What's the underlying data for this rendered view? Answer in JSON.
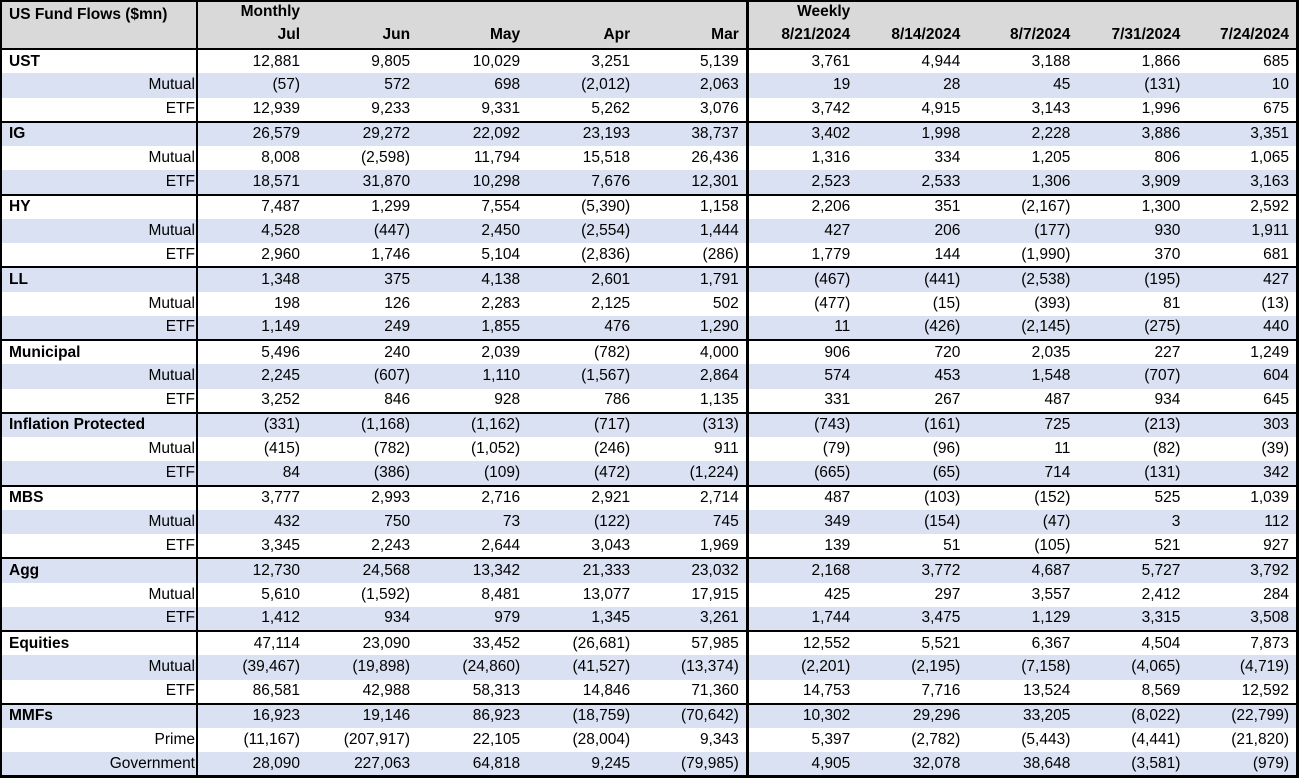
{
  "colors": {
    "header_bg": "#D9D9D9",
    "row_shade": "#D9E1F2",
    "row_plain": "#FFFFFF",
    "border": "#000000",
    "text": "#000000"
  },
  "chart_data": {
    "type": "table",
    "title": "US Fund Flows ($mn)",
    "group_headers": {
      "monthly": "Monthly",
      "weekly": "Weekly"
    },
    "columns": {
      "monthly": [
        "Jul",
        "Jun",
        "May",
        "Apr",
        "Mar"
      ],
      "weekly": [
        "8/21/2024",
        "8/14/2024",
        "8/7/2024",
        "7/31/2024",
        "7/24/2024"
      ]
    },
    "negative_format": "parentheses",
    "rows": [
      {
        "label": "UST",
        "type": "category",
        "monthly": [
          "12,881",
          "9,805",
          "10,029",
          "3,251",
          "5,139"
        ],
        "weekly": [
          "3,761",
          "4,944",
          "3,188",
          "1,866",
          "685"
        ]
      },
      {
        "label": "Mutual",
        "type": "sub",
        "monthly": [
          "(57)",
          "572",
          "698",
          "(2,012)",
          "2,063"
        ],
        "weekly": [
          "19",
          "28",
          "45",
          "(131)",
          "10"
        ]
      },
      {
        "label": "ETF",
        "type": "sub",
        "monthly": [
          "12,939",
          "9,233",
          "9,331",
          "5,262",
          "3,076"
        ],
        "weekly": [
          "3,742",
          "4,915",
          "3,143",
          "1,996",
          "675"
        ]
      },
      {
        "label": "IG",
        "type": "category",
        "monthly": [
          "26,579",
          "29,272",
          "22,092",
          "23,193",
          "38,737"
        ],
        "weekly": [
          "3,402",
          "1,998",
          "2,228",
          "3,886",
          "3,351"
        ]
      },
      {
        "label": "Mutual",
        "type": "sub",
        "monthly": [
          "8,008",
          "(2,598)",
          "11,794",
          "15,518",
          "26,436"
        ],
        "weekly": [
          "1,316",
          "334",
          "1,205",
          "806",
          "1,065"
        ]
      },
      {
        "label": "ETF",
        "type": "sub",
        "monthly": [
          "18,571",
          "31,870",
          "10,298",
          "7,676",
          "12,301"
        ],
        "weekly": [
          "2,523",
          "2,533",
          "1,306",
          "3,909",
          "3,163"
        ]
      },
      {
        "label": "HY",
        "type": "category",
        "monthly": [
          "7,487",
          "1,299",
          "7,554",
          "(5,390)",
          "1,158"
        ],
        "weekly": [
          "2,206",
          "351",
          "(2,167)",
          "1,300",
          "2,592"
        ]
      },
      {
        "label": "Mutual",
        "type": "sub",
        "monthly": [
          "4,528",
          "(447)",
          "2,450",
          "(2,554)",
          "1,444"
        ],
        "weekly": [
          "427",
          "206",
          "(177)",
          "930",
          "1,911"
        ]
      },
      {
        "label": "ETF",
        "type": "sub",
        "monthly": [
          "2,960",
          "1,746",
          "5,104",
          "(2,836)",
          "(286)"
        ],
        "weekly": [
          "1,779",
          "144",
          "(1,990)",
          "370",
          "681"
        ]
      },
      {
        "label": "LL",
        "type": "category",
        "monthly": [
          "1,348",
          "375",
          "4,138",
          "2,601",
          "1,791"
        ],
        "weekly": [
          "(467)",
          "(441)",
          "(2,538)",
          "(195)",
          "427"
        ]
      },
      {
        "label": "Mutual",
        "type": "sub",
        "monthly": [
          "198",
          "126",
          "2,283",
          "2,125",
          "502"
        ],
        "weekly": [
          "(477)",
          "(15)",
          "(393)",
          "81",
          "(13)"
        ]
      },
      {
        "label": "ETF",
        "type": "sub",
        "monthly": [
          "1,149",
          "249",
          "1,855",
          "476",
          "1,290"
        ],
        "weekly": [
          "11",
          "(426)",
          "(2,145)",
          "(275)",
          "440"
        ]
      },
      {
        "label": "Municipal",
        "type": "category",
        "monthly": [
          "5,496",
          "240",
          "2,039",
          "(782)",
          "4,000"
        ],
        "weekly": [
          "906",
          "720",
          "2,035",
          "227",
          "1,249"
        ]
      },
      {
        "label": "Mutual",
        "type": "sub",
        "monthly": [
          "2,245",
          "(607)",
          "1,110",
          "(1,567)",
          "2,864"
        ],
        "weekly": [
          "574",
          "453",
          "1,548",
          "(707)",
          "604"
        ]
      },
      {
        "label": "ETF",
        "type": "sub",
        "monthly": [
          "3,252",
          "846",
          "928",
          "786",
          "1,135"
        ],
        "weekly": [
          "331",
          "267",
          "487",
          "934",
          "645"
        ]
      },
      {
        "label": "Inflation Protected",
        "type": "category",
        "monthly": [
          "(331)",
          "(1,168)",
          "(1,162)",
          "(717)",
          "(313)"
        ],
        "weekly": [
          "(743)",
          "(161)",
          "725",
          "(213)",
          "303"
        ]
      },
      {
        "label": "Mutual",
        "type": "sub",
        "monthly": [
          "(415)",
          "(782)",
          "(1,052)",
          "(246)",
          "911"
        ],
        "weekly": [
          "(79)",
          "(96)",
          "11",
          "(82)",
          "(39)"
        ]
      },
      {
        "label": "ETF",
        "type": "sub",
        "monthly": [
          "84",
          "(386)",
          "(109)",
          "(472)",
          "(1,224)"
        ],
        "weekly": [
          "(665)",
          "(65)",
          "714",
          "(131)",
          "342"
        ]
      },
      {
        "label": "MBS",
        "type": "category",
        "monthly": [
          "3,777",
          "2,993",
          "2,716",
          "2,921",
          "2,714"
        ],
        "weekly": [
          "487",
          "(103)",
          "(152)",
          "525",
          "1,039"
        ]
      },
      {
        "label": "Mutual",
        "type": "sub",
        "monthly": [
          "432",
          "750",
          "73",
          "(122)",
          "745"
        ],
        "weekly": [
          "349",
          "(154)",
          "(47)",
          "3",
          "112"
        ]
      },
      {
        "label": "ETF",
        "type": "sub",
        "monthly": [
          "3,345",
          "2,243",
          "2,644",
          "3,043",
          "1,969"
        ],
        "weekly": [
          "139",
          "51",
          "(105)",
          "521",
          "927"
        ]
      },
      {
        "label": "Agg",
        "type": "category",
        "monthly": [
          "12,730",
          "24,568",
          "13,342",
          "21,333",
          "23,032"
        ],
        "weekly": [
          "2,168",
          "3,772",
          "4,687",
          "5,727",
          "3,792"
        ]
      },
      {
        "label": "Mutual",
        "type": "sub",
        "monthly": [
          "5,610",
          "(1,592)",
          "8,481",
          "13,077",
          "17,915"
        ],
        "weekly": [
          "425",
          "297",
          "3,557",
          "2,412",
          "284"
        ]
      },
      {
        "label": "ETF",
        "type": "sub",
        "monthly": [
          "1,412",
          "934",
          "979",
          "1,345",
          "3,261"
        ],
        "weekly": [
          "1,744",
          "3,475",
          "1,129",
          "3,315",
          "3,508"
        ]
      },
      {
        "label": "Equities",
        "type": "category",
        "monthly": [
          "47,114",
          "23,090",
          "33,452",
          "(26,681)",
          "57,985"
        ],
        "weekly": [
          "12,552",
          "5,521",
          "6,367",
          "4,504",
          "7,873"
        ]
      },
      {
        "label": "Mutual",
        "type": "sub",
        "monthly": [
          "(39,467)",
          "(19,898)",
          "(24,860)",
          "(41,527)",
          "(13,374)"
        ],
        "weekly": [
          "(2,201)",
          "(2,195)",
          "(7,158)",
          "(4,065)",
          "(4,719)"
        ]
      },
      {
        "label": "ETF",
        "type": "sub",
        "monthly": [
          "86,581",
          "42,988",
          "58,313",
          "14,846",
          "71,360"
        ],
        "weekly": [
          "14,753",
          "7,716",
          "13,524",
          "8,569",
          "12,592"
        ]
      },
      {
        "label": "MMFs",
        "type": "category",
        "monthly": [
          "16,923",
          "19,146",
          "86,923",
          "(18,759)",
          "(70,642)"
        ],
        "weekly": [
          "10,302",
          "29,296",
          "33,205",
          "(8,022)",
          "(22,799)"
        ]
      },
      {
        "label": "Prime",
        "type": "sub",
        "monthly": [
          "(11,167)",
          "(207,917)",
          "22,105",
          "(28,004)",
          "9,343"
        ],
        "weekly": [
          "5,397",
          "(2,782)",
          "(5,443)",
          "(4,441)",
          "(21,820)"
        ]
      },
      {
        "label": "Government",
        "type": "sub",
        "monthly": [
          "28,090",
          "227,063",
          "64,818",
          "9,245",
          "(79,985)"
        ],
        "weekly": [
          "4,905",
          "32,078",
          "38,648",
          "(3,581)",
          "(979)"
        ]
      }
    ]
  }
}
